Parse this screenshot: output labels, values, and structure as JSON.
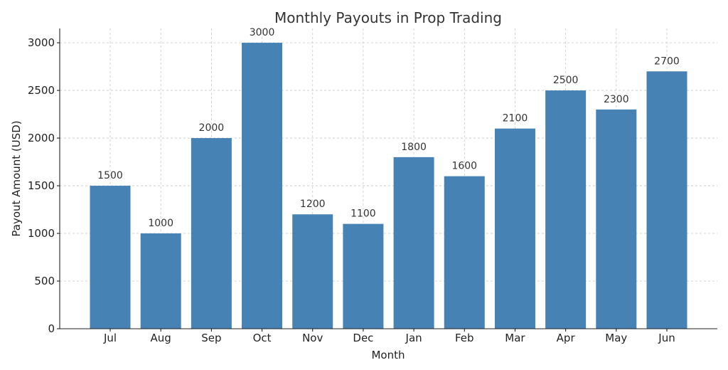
{
  "chart_data": {
    "type": "bar",
    "title": "Monthly Payouts in Prop Trading",
    "xlabel": "Month",
    "ylabel": "Payout Amount (USD)",
    "categories": [
      "Jul",
      "Aug",
      "Sep",
      "Oct",
      "Nov",
      "Dec",
      "Jan",
      "Feb",
      "Mar",
      "Apr",
      "May",
      "Jun"
    ],
    "values": [
      1500,
      1000,
      2000,
      3000,
      1200,
      1100,
      1800,
      1600,
      2100,
      2500,
      2300,
      2700
    ],
    "ylim": [
      0,
      3150
    ],
    "yticks": [
      0,
      500,
      1000,
      1500,
      2000,
      2500,
      3000
    ],
    "grid": true,
    "bar_color": "#4682B4",
    "show_value_labels": true
  }
}
